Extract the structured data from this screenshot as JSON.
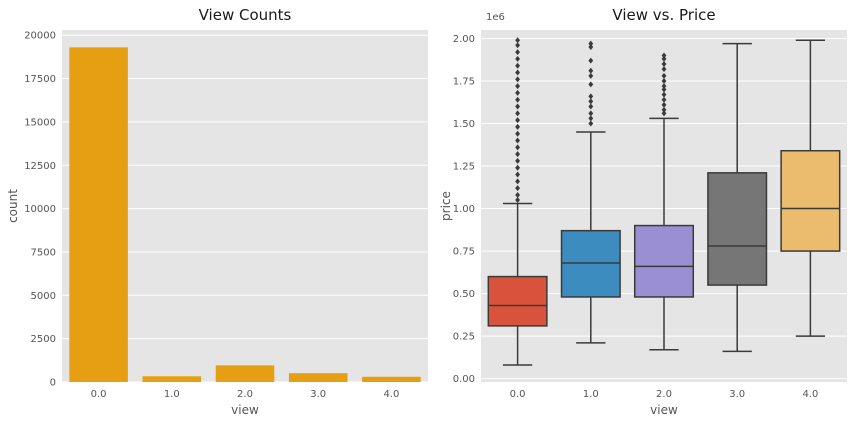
{
  "chart_data": [
    {
      "type": "bar",
      "title": "View Counts",
      "xlabel": "view",
      "ylabel": "count",
      "categories": [
        "0.0",
        "1.0",
        "2.0",
        "3.0",
        "4.0"
      ],
      "values": [
        19300,
        330,
        960,
        510,
        300
      ],
      "ylim": [
        0,
        20300
      ],
      "yticks": [
        0,
        2500,
        5000,
        7500,
        10000,
        12500,
        15000,
        17500,
        20000
      ],
      "ytick_labels": [
        "0",
        "2500",
        "5000",
        "7500",
        "10000",
        "12500",
        "15000",
        "17500",
        "20000"
      ],
      "color": "#E69F12",
      "grid": true
    },
    {
      "type": "box",
      "title": "View vs. Price",
      "xlabel": "view",
      "ylabel": "price",
      "y_offset_label": "1e6",
      "categories": [
        "0.0",
        "1.0",
        "2.0",
        "3.0",
        "4.0"
      ],
      "ylim": [
        -0.02,
        2.05
      ],
      "yticks": [
        0,
        0.25,
        0.5,
        0.75,
        1.0,
        1.25,
        1.5,
        1.75,
        2.0
      ],
      "ytick_labels": [
        "0.00",
        "0.25",
        "0.50",
        "0.75",
        "1.00",
        "1.25",
        "1.50",
        "1.75",
        "2.00"
      ],
      "boxes": [
        {
          "category": "0.0",
          "whisker_low": 0.08,
          "q1": 0.31,
          "median": 0.43,
          "q3": 0.6,
          "whisker_high": 1.03,
          "outliers": [
            1.05,
            1.08,
            1.12,
            1.16,
            1.2,
            1.24,
            1.28,
            1.32,
            1.36,
            1.4,
            1.44,
            1.48,
            1.52,
            1.56,
            1.6,
            1.64,
            1.68,
            1.72,
            1.76,
            1.8,
            1.84,
            1.88,
            1.92,
            1.96,
            1.99
          ],
          "color": "#D9533C"
        },
        {
          "category": "1.0",
          "whisker_low": 0.21,
          "q1": 0.48,
          "median": 0.68,
          "q3": 0.87,
          "whisker_high": 1.45,
          "outliers": [
            1.5,
            1.53,
            1.56,
            1.6,
            1.63,
            1.66,
            1.73,
            1.78,
            1.81,
            1.87,
            1.95,
            1.97
          ],
          "color": "#3C8CBF"
        },
        {
          "category": "2.0",
          "whisker_low": 0.17,
          "q1": 0.48,
          "median": 0.66,
          "q3": 0.9,
          "whisker_high": 1.53,
          "outliers": [
            1.56,
            1.58,
            1.61,
            1.64,
            1.67,
            1.7,
            1.72,
            1.75,
            1.78,
            1.82,
            1.85,
            1.88,
            1.9
          ],
          "color": "#9B8FD3"
        },
        {
          "category": "3.0",
          "whisker_low": 0.16,
          "q1": 0.55,
          "median": 0.78,
          "q3": 1.21,
          "whisker_high": 1.97,
          "outliers": [],
          "color": "#767676"
        },
        {
          "category": "4.0",
          "whisker_low": 0.25,
          "q1": 0.75,
          "median": 1.0,
          "q3": 1.34,
          "whisker_high": 1.99,
          "outliers": [],
          "color": "#EBBC6E"
        }
      ],
      "line_color": "#3a3a3a",
      "grid": true
    }
  ]
}
